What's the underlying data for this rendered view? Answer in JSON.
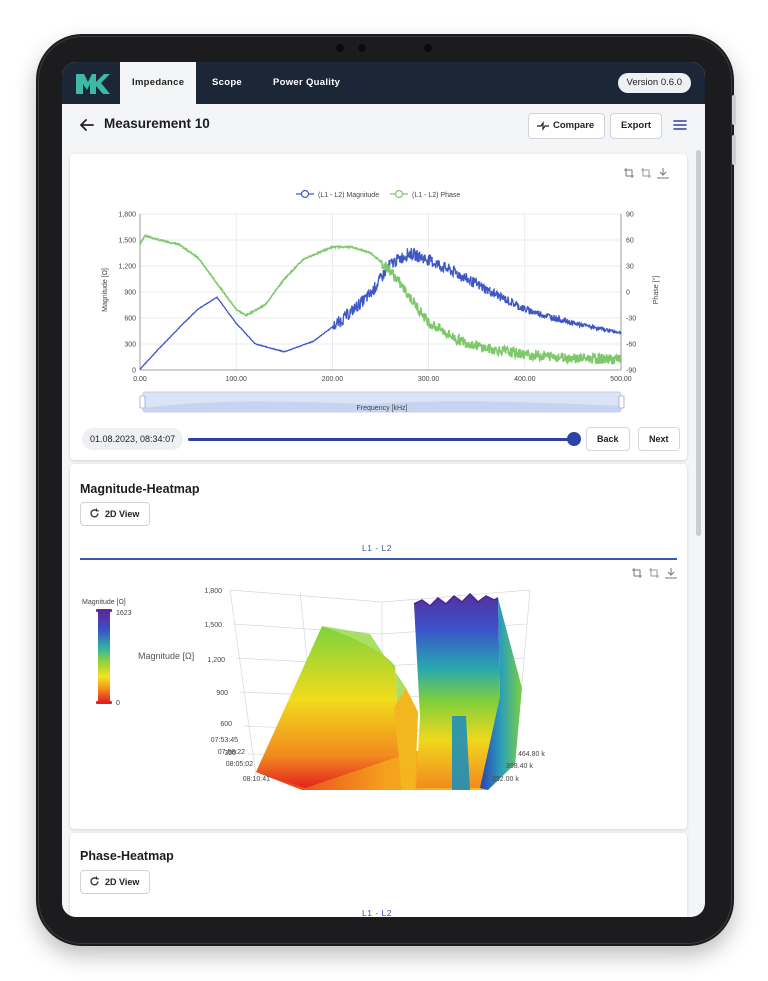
{
  "app": {
    "tabs": [
      "Impedance",
      "Scope",
      "Power Quality"
    ],
    "active_tab": "Impedance",
    "version": "Version 0.6.0"
  },
  "header": {
    "title": "Measurement 10",
    "compare_label": "Compare",
    "export_label": "Export"
  },
  "measurement": {
    "timestamp": "01.08.2023, 08:34:07",
    "back_label": "Back",
    "next_label": "Next",
    "slider_position": 1.0
  },
  "magnitude_heatmap": {
    "title": "Magnitude-Heatmap",
    "view_button": "2D View",
    "subtab": "L1 - L2",
    "colorbar_title": "Magnitude [Ω]",
    "colorbar_max": "1623",
    "colorbar_min": "0",
    "z_axis_label": "Magnitude [Ω]",
    "z_ticks": [
      "1,800",
      "1,500",
      "1,200",
      "900",
      "600",
      "300"
    ],
    "time_ticks": [
      "07:53:45",
      "07:59:22",
      "08:05:02",
      "08:10:41"
    ],
    "freq_ticks": [
      "464.80 k",
      "398.40 k",
      "332.00 k"
    ]
  },
  "phase_heatmap": {
    "title": "Phase-Heatmap",
    "view_button": "2D View",
    "subtab": "L1 - L2"
  },
  "colors": {
    "topbar": "#1b2736",
    "accent": "#2f43a6",
    "magnitude_series": "#3d57c4",
    "phase_series": "#7ec86b",
    "logo": "#3fb9a7"
  },
  "chart_data": {
    "type": "line",
    "legend": [
      "(L1 - L2) Magnitude",
      "(L1 - L2) Phase"
    ],
    "xlabel": "Frequency [kHz]",
    "ylabel": "Magnitude [Ω]",
    "y2label": "Phase [°]",
    "xlim": [
      0,
      500
    ],
    "ylim": [
      0,
      1800
    ],
    "y2lim": [
      -90,
      90
    ],
    "x_ticks": [
      "0.00",
      "100.00",
      "200.00",
      "300.00",
      "400.00",
      "500.00"
    ],
    "y_ticks": [
      "0",
      "300",
      "600",
      "900",
      "1,200",
      "1,500",
      "1,800"
    ],
    "y2_ticks": [
      "-90",
      "-60",
      "-30",
      "0",
      "30",
      "60",
      "90"
    ],
    "series": [
      {
        "name": "(L1 - L2) Magnitude",
        "x": [
          0,
          20,
          40,
          60,
          80,
          100,
          120,
          150,
          180,
          210,
          240,
          260,
          280,
          300,
          330,
          360,
          400,
          450,
          500
        ],
        "values": [
          10,
          250,
          480,
          700,
          840,
          540,
          300,
          210,
          330,
          580,
          880,
          1220,
          1350,
          1270,
          1110,
          930,
          700,
          540,
          430
        ]
      },
      {
        "name": "(L1 - L2) Phase",
        "x": [
          0,
          5,
          20,
          40,
          60,
          80,
          100,
          110,
          130,
          150,
          170,
          200,
          220,
          240,
          260,
          280,
          300,
          330,
          360,
          400,
          450,
          500
        ],
        "values": [
          55,
          65,
          60,
          55,
          40,
          10,
          -20,
          -27,
          -15,
          15,
          38,
          52,
          52,
          45,
          25,
          -5,
          -35,
          -55,
          -65,
          -72,
          -76,
          -78
        ]
      }
    ]
  }
}
